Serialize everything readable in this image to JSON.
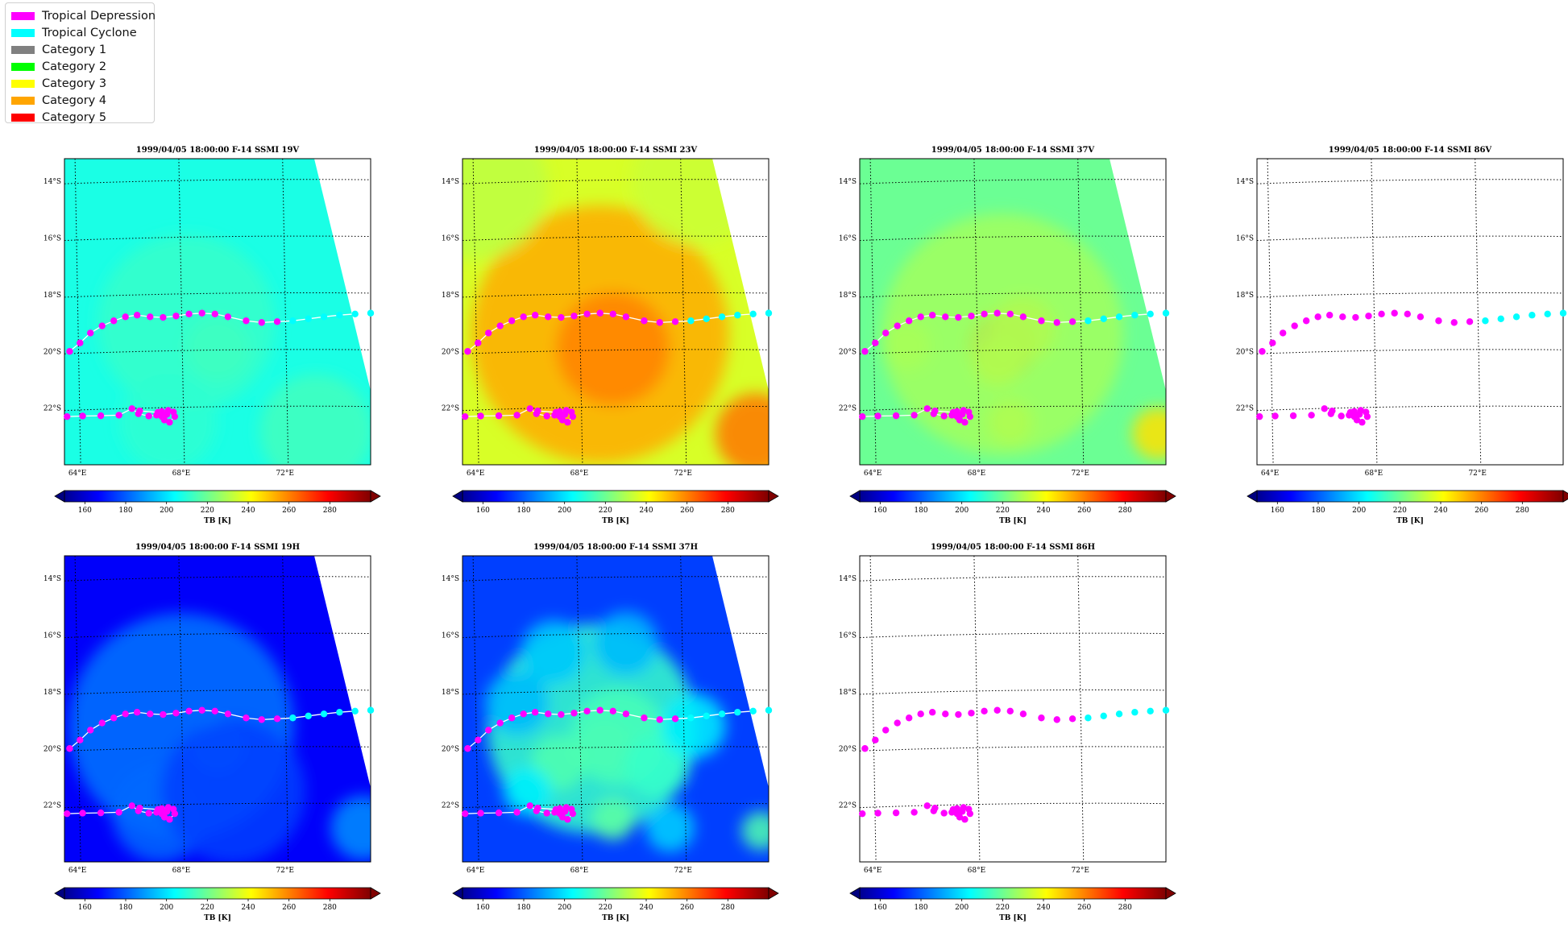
{
  "legend": {
    "items": [
      {
        "label": "Tropical Depression",
        "color": "#ff00ff"
      },
      {
        "label": "Tropical Cyclone",
        "color": "#00ffff"
      },
      {
        "label": "Category 1",
        "color": "#808080"
      },
      {
        "label": "Category 2",
        "color": "#00ff00"
      },
      {
        "label": "Category 3",
        "color": "#ffff00"
      },
      {
        "label": "Category 4",
        "color": "#ffa500"
      },
      {
        "label": "Category 5",
        "color": "#ff0000"
      }
    ]
  },
  "chart_data": [
    {
      "type": "heatmap",
      "title": "1999/04/05 18:00:00  F-14 SSMI 19V",
      "field_style": "19v",
      "colorbar_label": "TB [K]",
      "colorbar_ticks": [
        160,
        180,
        200,
        220,
        240,
        260,
        280
      ],
      "colorbar_range": [
        150,
        300
      ],
      "lon_ticks": [
        "64°E",
        "68°E",
        "72°E"
      ],
      "lat_ticks": [
        "14°S",
        "16°S",
        "18°S",
        "20°S",
        "22°S"
      ],
      "lon_range": [
        63.5,
        75.3
      ],
      "lat_range": [
        -24.0,
        -13.2
      ],
      "track_line": true
    },
    {
      "type": "heatmap",
      "title": "1999/04/05 18:00:00  F-14 SSMI 23V",
      "field_style": "23v",
      "colorbar_label": "TB [K]",
      "colorbar_ticks": [
        160,
        180,
        200,
        220,
        240,
        260,
        280
      ],
      "colorbar_range": [
        150,
        300
      ],
      "lon_ticks": [
        "64°E",
        "68°E",
        "72°E"
      ],
      "lat_ticks": [
        "14°S",
        "16°S",
        "18°S",
        "20°S",
        "22°S"
      ],
      "lon_range": [
        63.5,
        75.3
      ],
      "lat_range": [
        -24.0,
        -13.2
      ],
      "track_line": true
    },
    {
      "type": "heatmap",
      "title": "1999/04/05 18:00:00  F-14 SSMI 37V",
      "field_style": "37v",
      "colorbar_label": "TB [K]",
      "colorbar_ticks": [
        160,
        180,
        200,
        220,
        240,
        260,
        280
      ],
      "colorbar_range": [
        150,
        300
      ],
      "lon_ticks": [
        "64°E",
        "68°E",
        "72°E"
      ],
      "lat_ticks": [
        "14°S",
        "16°S",
        "18°S",
        "20°S",
        "22°S"
      ],
      "lon_range": [
        63.5,
        75.3
      ],
      "lat_range": [
        -24.0,
        -13.2
      ],
      "track_line": true
    },
    {
      "type": "heatmap",
      "title": "1999/04/05 18:00:00  F-14 SSMI 86V",
      "field_style": "none",
      "colorbar_label": "TB [K]",
      "colorbar_ticks": [
        160,
        180,
        200,
        220,
        240,
        260,
        280
      ],
      "colorbar_range": [
        150,
        300
      ],
      "lon_ticks": [
        "64°E",
        "68°E",
        "72°E"
      ],
      "lat_ticks": [
        "14°S",
        "16°S",
        "18°S",
        "20°S",
        "22°S"
      ],
      "lon_range": [
        63.5,
        75.3
      ],
      "lat_range": [
        -24.0,
        -13.2
      ],
      "track_line": false
    },
    {
      "type": "heatmap",
      "title": "1999/04/05 18:00:00  F-14 SSMI 19H",
      "field_style": "19h",
      "colorbar_label": "TB [K]",
      "colorbar_ticks": [
        160,
        180,
        200,
        220,
        240,
        260,
        280
      ],
      "colorbar_range": [
        150,
        300
      ],
      "lon_ticks": [
        "64°E",
        "68°E",
        "72°E"
      ],
      "lat_ticks": [
        "14°S",
        "16°S",
        "18°S",
        "20°S",
        "22°S"
      ],
      "lon_range": [
        63.5,
        75.3
      ],
      "lat_range": [
        -24.0,
        -13.2
      ],
      "track_line": true
    },
    {
      "type": "heatmap",
      "title": "1999/04/05 18:00:00  F-14 SSMI 37H",
      "field_style": "37h",
      "colorbar_label": "TB [K]",
      "colorbar_ticks": [
        160,
        180,
        200,
        220,
        240,
        260,
        280
      ],
      "colorbar_range": [
        150,
        300
      ],
      "lon_ticks": [
        "64°E",
        "68°E",
        "72°E"
      ],
      "lat_ticks": [
        "14°S",
        "16°S",
        "18°S",
        "20°S",
        "22°S"
      ],
      "lon_range": [
        63.5,
        75.3
      ],
      "lat_range": [
        -24.0,
        -13.2
      ],
      "track_line": true
    },
    {
      "type": "heatmap",
      "title": "1999/04/05 18:00:00  F-14 SSMI 86H",
      "field_style": "none",
      "colorbar_label": "TB [K]",
      "colorbar_ticks": [
        160,
        180,
        200,
        220,
        240,
        260,
        280
      ],
      "colorbar_range": [
        150,
        300
      ],
      "lon_ticks": [
        "64°E",
        "68°E",
        "72°E"
      ],
      "lat_ticks": [
        "14°S",
        "16°S",
        "18°S",
        "20°S",
        "22°S"
      ],
      "lon_range": [
        63.5,
        75.3
      ],
      "lat_range": [
        -24.0,
        -13.2
      ],
      "track_line": false
    }
  ],
  "track": {
    "segment_a": [
      {
        "lon": 63.7,
        "lat": -20.0,
        "stage": "Tropical Depression"
      },
      {
        "lon": 64.1,
        "lat": -19.7,
        "stage": "Tropical Depression"
      },
      {
        "lon": 64.5,
        "lat": -19.35,
        "stage": "Tropical Depression"
      },
      {
        "lon": 64.95,
        "lat": -19.1,
        "stage": "Tropical Depression"
      },
      {
        "lon": 65.4,
        "lat": -18.92,
        "stage": "Tropical Depression"
      },
      {
        "lon": 65.85,
        "lat": -18.78,
        "stage": "Tropical Depression"
      },
      {
        "lon": 66.3,
        "lat": -18.72,
        "stage": "Tropical Depression"
      },
      {
        "lon": 66.8,
        "lat": -18.78,
        "stage": "Tropical Depression"
      },
      {
        "lon": 67.3,
        "lat": -18.8,
        "stage": "Tropical Depression"
      },
      {
        "lon": 67.8,
        "lat": -18.75,
        "stage": "Tropical Depression"
      },
      {
        "lon": 68.3,
        "lat": -18.68,
        "stage": "Tropical Depression"
      },
      {
        "lon": 68.8,
        "lat": -18.65,
        "stage": "Tropical Depression"
      },
      {
        "lon": 69.3,
        "lat": -18.68,
        "stage": "Tropical Depression"
      },
      {
        "lon": 69.8,
        "lat": -18.78,
        "stage": "Tropical Depression"
      },
      {
        "lon": 70.5,
        "lat": -18.92,
        "stage": "Tropical Depression"
      },
      {
        "lon": 71.1,
        "lat": -18.98,
        "stage": "Tropical Depression"
      },
      {
        "lon": 71.7,
        "lat": -18.95,
        "stage": "Tropical Depression"
      },
      {
        "lon": 72.3,
        "lat": -18.92,
        "stage": "Tropical Cyclone"
      },
      {
        "lon": 72.9,
        "lat": -18.85,
        "stage": "Tropical Cyclone"
      },
      {
        "lon": 73.5,
        "lat": -18.78,
        "stage": "Tropical Cyclone"
      },
      {
        "lon": 74.1,
        "lat": -18.72,
        "stage": "Tropical Cyclone"
      },
      {
        "lon": 74.7,
        "lat": -18.68,
        "stage": "Tropical Cyclone"
      },
      {
        "lon": 75.3,
        "lat": -18.65,
        "stage": "Tropical Cyclone"
      }
    ],
    "segment_b": [
      {
        "lon": 63.6,
        "lat": -22.3,
        "stage": "Tropical Depression"
      },
      {
        "lon": 64.2,
        "lat": -22.28,
        "stage": "Tropical Depression"
      },
      {
        "lon": 64.9,
        "lat": -22.27,
        "stage": "Tropical Depression"
      },
      {
        "lon": 65.6,
        "lat": -22.25,
        "stage": "Tropical Depression"
      },
      {
        "lon": 66.1,
        "lat": -22.02,
        "stage": "Tropical Depression"
      },
      {
        "lon": 66.35,
        "lat": -22.2,
        "stage": "Tropical Depression"
      },
      {
        "lon": 66.75,
        "lat": -22.28,
        "stage": "Tropical Depression"
      },
      {
        "lon": 67.05,
        "lat": -22.25,
        "stage": "Tropical Depression"
      },
      {
        "lon": 67.25,
        "lat": -22.12,
        "stage": "Tropical Depression"
      },
      {
        "lon": 67.5,
        "lat": -22.08,
        "stage": "Tropical Depression"
      },
      {
        "lon": 67.7,
        "lat": -22.14,
        "stage": "Tropical Depression"
      },
      {
        "lon": 67.75,
        "lat": -22.3,
        "stage": "Tropical Depression"
      },
      {
        "lon": 67.55,
        "lat": -22.5,
        "stage": "Tropical Depression"
      },
      {
        "lon": 67.35,
        "lat": -22.42,
        "stage": "Tropical Depression"
      },
      {
        "lon": 67.25,
        "lat": -22.3,
        "stage": "Tropical Depression"
      },
      {
        "lon": 67.45,
        "lat": -22.22,
        "stage": "Tropical Depression"
      },
      {
        "lon": 67.1,
        "lat": -22.15,
        "stage": "Tropical Depression"
      },
      {
        "lon": 66.4,
        "lat": -22.1,
        "stage": "Tropical Depression"
      }
    ]
  }
}
